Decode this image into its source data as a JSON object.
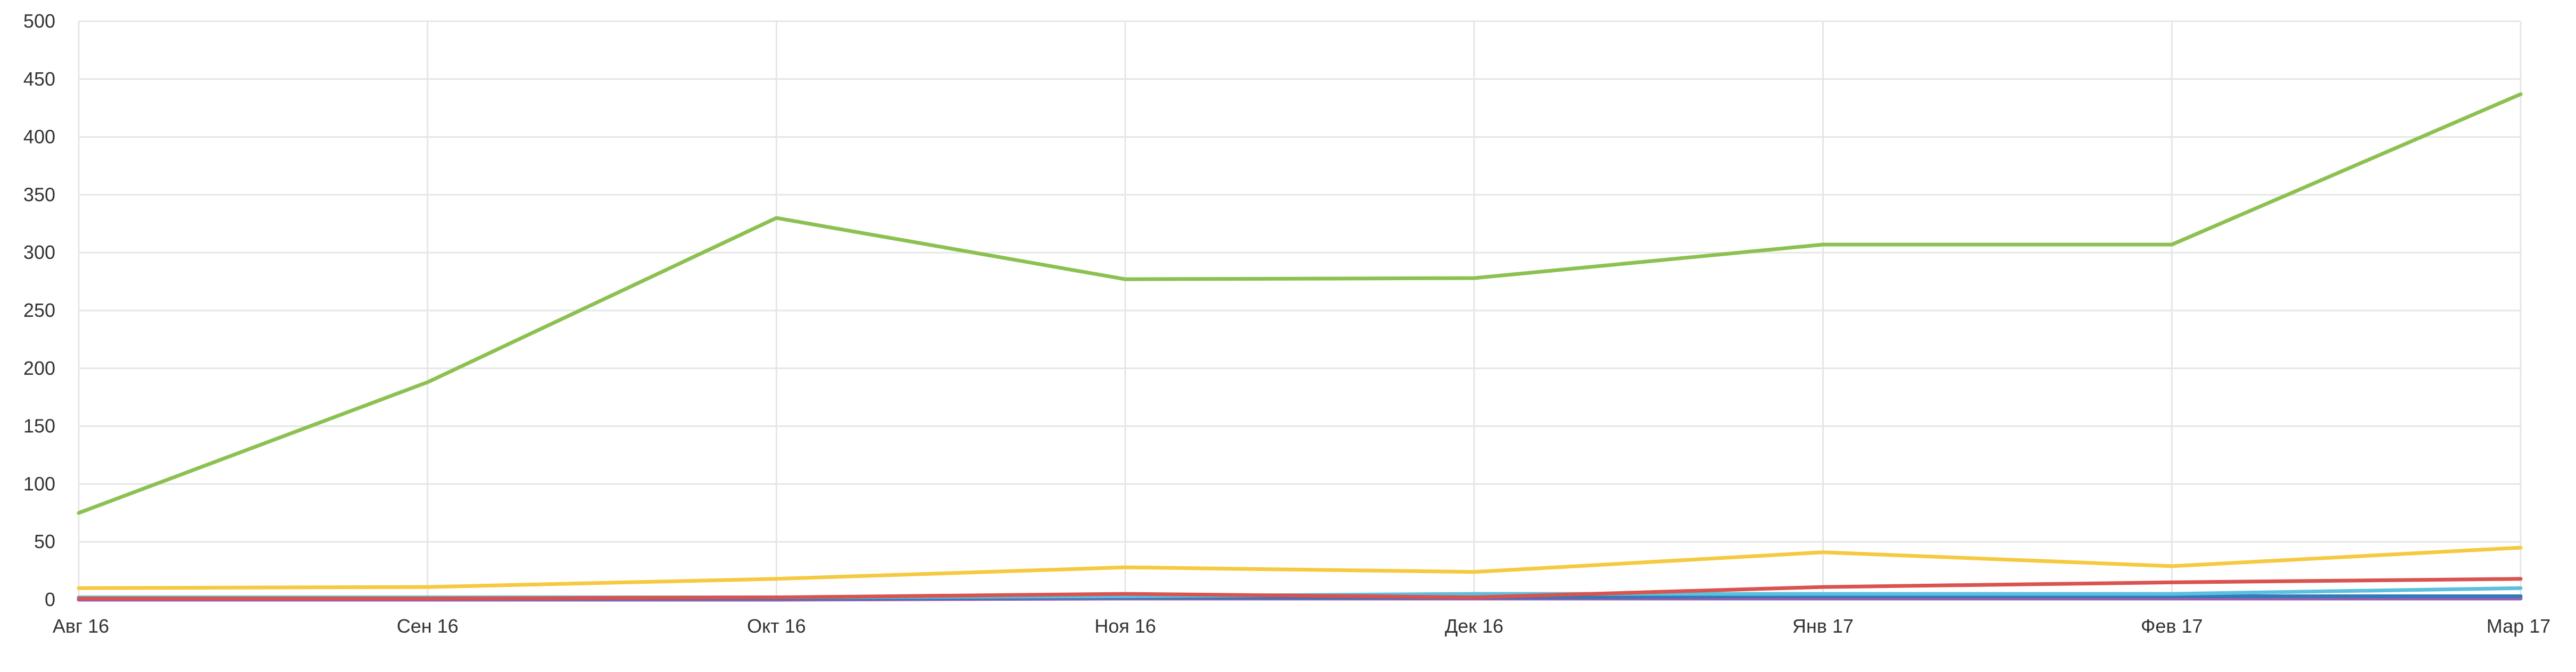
{
  "chart_data": {
    "type": "line",
    "title": "",
    "xlabel": "",
    "ylabel": "",
    "categories": [
      "Авг 16",
      "Сен 16",
      "Окт 16",
      "Ноя 16",
      "Дек 16",
      "Янв 17",
      "Фев 17",
      "Мар 17"
    ],
    "ylim": [
      0,
      500
    ],
    "yticks": [
      0,
      50,
      100,
      150,
      200,
      250,
      300,
      350,
      400,
      450,
      500
    ],
    "grid": true,
    "legend": "none",
    "series": [
      {
        "color": "#8cc152",
        "values": [
          75,
          188,
          330,
          277,
          278,
          307,
          307,
          437
        ]
      },
      {
        "color": "#f5c940",
        "values": [
          10,
          11,
          18,
          28,
          24,
          41,
          29,
          45
        ]
      },
      {
        "color": "#d9534f",
        "values": [
          1,
          1,
          2,
          5,
          2,
          11,
          15,
          18
        ]
      },
      {
        "color": "#5bc0de",
        "values": [
          2,
          2,
          2,
          3,
          5,
          5,
          5,
          10
        ]
      },
      {
        "color": "#337ab7",
        "values": [
          1,
          1,
          1,
          2,
          2,
          3,
          3,
          3
        ]
      },
      {
        "color": "#9c5fb5",
        "values": [
          0,
          0,
          0,
          1,
          1,
          1,
          1,
          1
        ]
      }
    ]
  }
}
